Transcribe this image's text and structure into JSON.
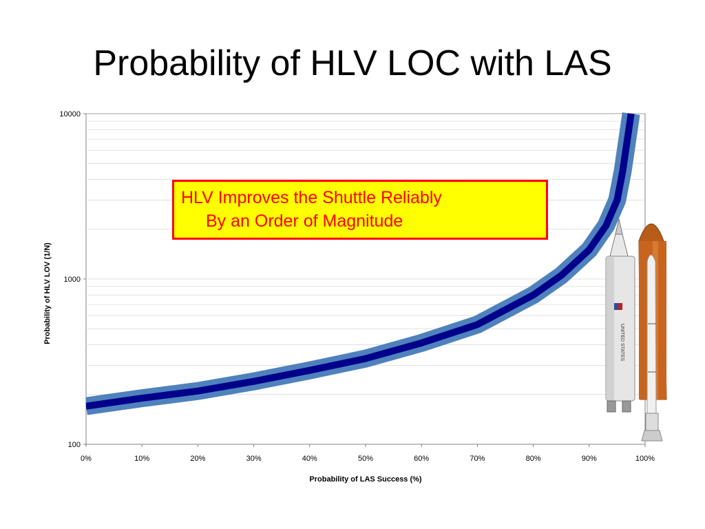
{
  "title": "Probability of HLV LOC with LAS",
  "callout": {
    "line1": "HLV Improves the Shuttle Reliably",
    "line2": "By an Order of Magnitude"
  },
  "colors": {
    "band": "#4f81bd",
    "line": "#00008b",
    "callout_bg": "#ffff00",
    "callout_border": "#ff0000",
    "callout_text": "#ff0000",
    "gridline": "#e0e0e0"
  },
  "illustration": {
    "name": "hlv-and-shuttle-illustration",
    "text_on_rocket": "UNITED STATES"
  },
  "chart_data": {
    "type": "line",
    "title": "",
    "xlabel": "Probability of LAS Success  (%)",
    "ylabel": "Probability of HLV LOV  (1/N)",
    "x_scale": "linear",
    "y_scale": "log",
    "xlim": [
      0,
      100
    ],
    "ylim": [
      100,
      10000
    ],
    "x_ticks": [
      "0%",
      "10%",
      "20%",
      "30%",
      "40%",
      "50%",
      "60%",
      "70%",
      "80%",
      "90%",
      "100%"
    ],
    "y_ticks": [
      "100",
      "1000",
      "10000"
    ],
    "grid": true,
    "legend": "none",
    "x": [
      0,
      10,
      20,
      30,
      40,
      50,
      60,
      70,
      80,
      85,
      90,
      93,
      95,
      96,
      97.5
    ],
    "series": [
      {
        "values": [
          170,
          190,
          210,
          240,
          280,
          330,
          410,
          530,
          800,
          1050,
          1500,
          2100,
          3000,
          4500,
          10000
        ]
      }
    ]
  }
}
